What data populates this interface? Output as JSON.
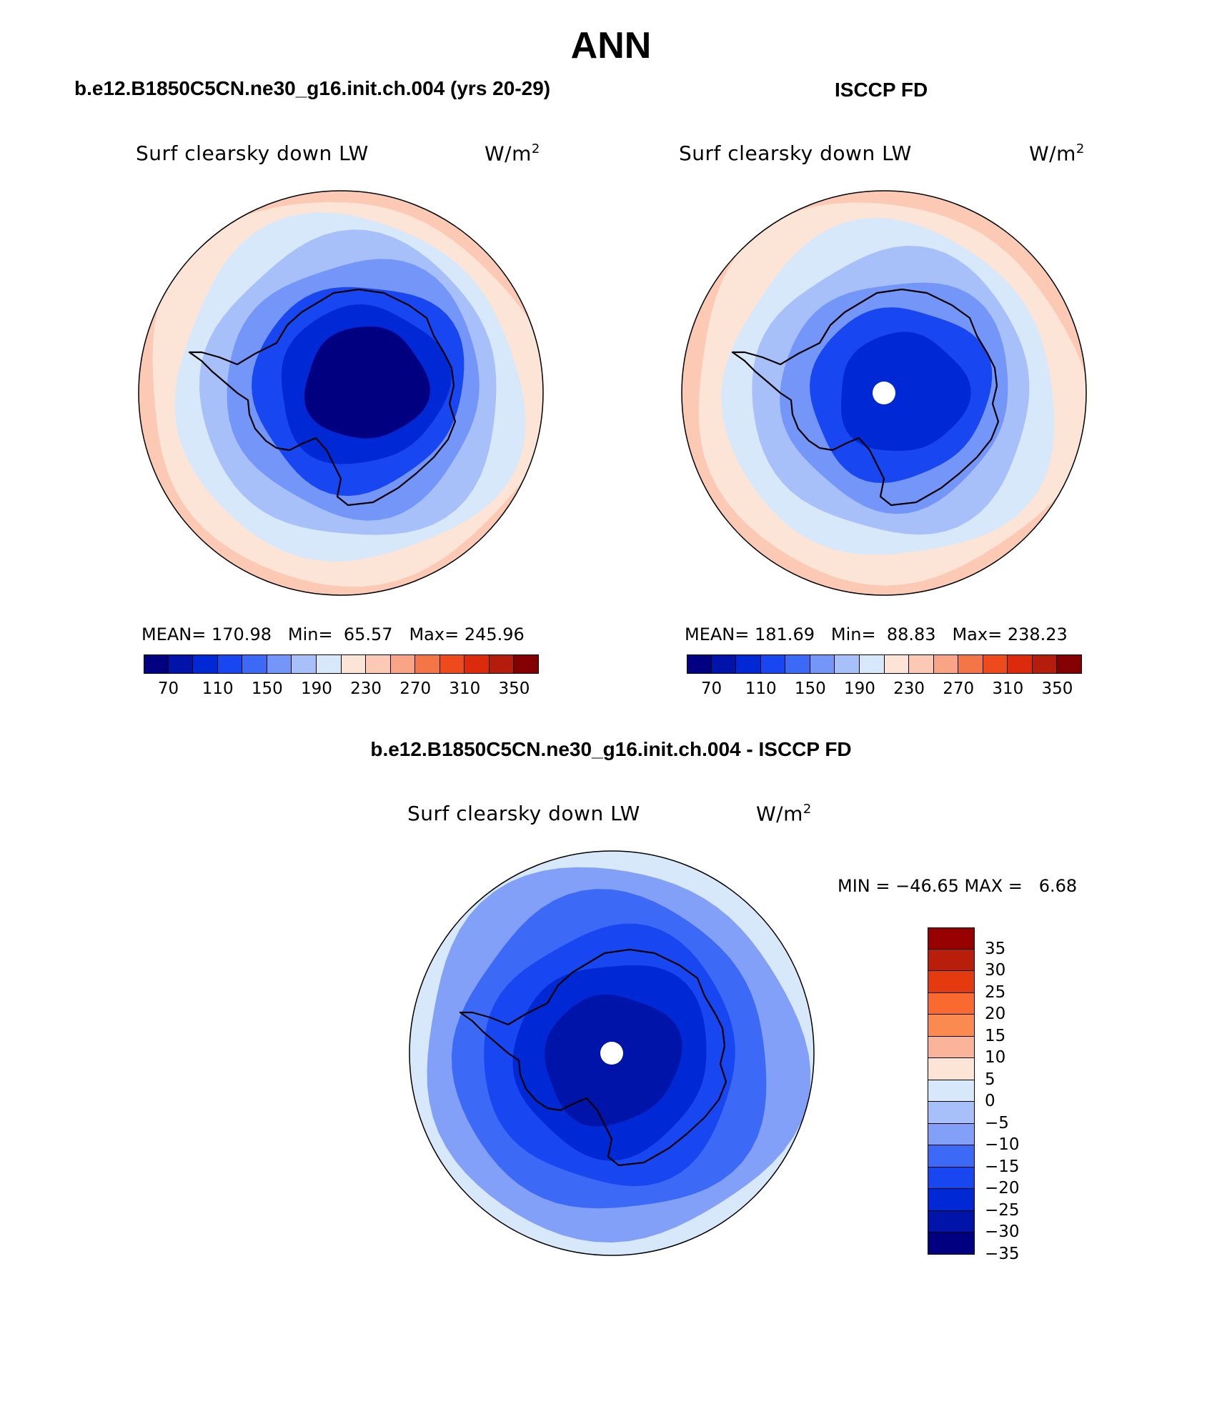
{
  "title": "ANN",
  "colors": {
    "abs_palette": [
      "#000080",
      "#0014aa",
      "#0028d4",
      "#1846f0",
      "#3c6af6",
      "#7496f8",
      "#a8c0fa",
      "#d8e8fb",
      "#fce4d6",
      "#fccab4",
      "#f9a484",
      "#f47646",
      "#ef4a1c",
      "#dc2a0c",
      "#b41c0c",
      "#840000"
    ],
    "diff_palette_top_to_bottom": [
      "#960000",
      "#b91e0a",
      "#e53a10",
      "#fa6a30",
      "#fa8a50",
      "#f9b49a",
      "#fce4d6",
      "#d8e8fb",
      "#a8c0fa",
      "#82a0f8",
      "#3c6af6",
      "#1846f0",
      "#0028d4",
      "#0014aa",
      "#000080"
    ],
    "land_outline": "#000000",
    "pole_mask": "#ffffff"
  },
  "panels": {
    "left": {
      "header": "b.e12.B1850C5CN.ne30_g16.init.ch.004 (yrs 20-29)",
      "variable": "Surf clearsky down LW",
      "units": "W/m",
      "units_sup": "2",
      "mean_label": "MEAN=",
      "mean": "170.98",
      "min_label": "Min=",
      "min": "65.57",
      "max_label": "Max=",
      "max": "245.96"
    },
    "right": {
      "header": "ISCCP FD",
      "variable": "Surf clearsky down LW",
      "units": "W/m",
      "units_sup": "2",
      "mean_label": "MEAN=",
      "mean": "181.69",
      "min_label": "Min=",
      "min": "88.83",
      "max_label": "Max=",
      "max": "238.23"
    },
    "diff": {
      "header": "b.e12.B1850C5CN.ne30_g16.init.ch.004 - ISCCP FD",
      "variable": "Surf clearsky down LW",
      "units": "W/m",
      "units_sup": "2",
      "minmax_text": "MIN = −46.65 MAX =   6.68"
    }
  },
  "chart_data": [
    {
      "type": "heatmap",
      "projection": "south polar stereographic",
      "title": "b.e12.B1850C5CN.ne30_g16.init.ch.004 (yrs 20-29)",
      "variable": "Surf clearsky down LW",
      "units": "W/m2",
      "mean": 170.98,
      "min": 65.57,
      "max": 245.96,
      "colorbar_levels": [
        70,
        90,
        110,
        130,
        150,
        170,
        190,
        210,
        230,
        250,
        270,
        290,
        310,
        330,
        350
      ],
      "colorbar_tick_labels": [
        "70",
        "110",
        "150",
        "190",
        "230",
        "270",
        "310",
        "350"
      ],
      "zones_center_to_edge": [
        {
          "level": 70,
          "value": 65
        },
        {
          "level": 90,
          "value": 100
        },
        {
          "level": 110,
          "value": 120
        },
        {
          "level": 150,
          "value": 155
        },
        {
          "level": 190,
          "value": 185
        },
        {
          "level": 210,
          "value": 205
        },
        {
          "level": 230,
          "value": 225
        },
        {
          "level": 250,
          "value": 240
        }
      ]
    },
    {
      "type": "heatmap",
      "projection": "south polar stereographic",
      "title": "ISCCP FD",
      "variable": "Surf clearsky down LW",
      "units": "W/m2",
      "mean": 181.69,
      "min": 88.83,
      "max": 238.23,
      "colorbar_levels": [
        70,
        90,
        110,
        130,
        150,
        170,
        190,
        210,
        230,
        250,
        270,
        290,
        310,
        330,
        350
      ],
      "colorbar_tick_labels": [
        "70",
        "110",
        "150",
        "190",
        "230",
        "270",
        "310",
        "350"
      ],
      "zones_center_to_edge": [
        {
          "level": 90,
          "value": 95
        },
        {
          "level": 110,
          "value": 125
        },
        {
          "level": 150,
          "value": 160
        },
        {
          "level": 170,
          "value": 180
        },
        {
          "level": 190,
          "value": 200
        },
        {
          "level": 210,
          "value": 215
        },
        {
          "level": 230,
          "value": 232
        }
      ]
    },
    {
      "type": "heatmap",
      "projection": "south polar stereographic",
      "title": "b.e12.B1850C5CN.ne30_g16.init.ch.004 - ISCCP FD",
      "variable": "Surf clearsky down LW",
      "units": "W/m2",
      "min": -46.65,
      "max": 6.68,
      "colorbar_levels": [
        35,
        30,
        25,
        20,
        15,
        10,
        5,
        0,
        -5,
        -10,
        -15,
        -20,
        -25,
        -30,
        -35
      ],
      "colorbar_tick_labels": [
        "35",
        "30",
        "25",
        "20",
        "15",
        "10",
        "5",
        "0",
        "−5",
        "−10",
        "−15",
        "−20",
        "−25",
        "−30",
        "−35"
      ],
      "zones_center_to_edge": [
        {
          "level": -25,
          "value": -27
        },
        {
          "level": -20,
          "value": -22
        },
        {
          "level": -15,
          "value": -17
        },
        {
          "level": -10,
          "value": -12
        },
        {
          "level": -5,
          "value": -6
        },
        {
          "level": 0,
          "value": 2
        }
      ]
    }
  ]
}
